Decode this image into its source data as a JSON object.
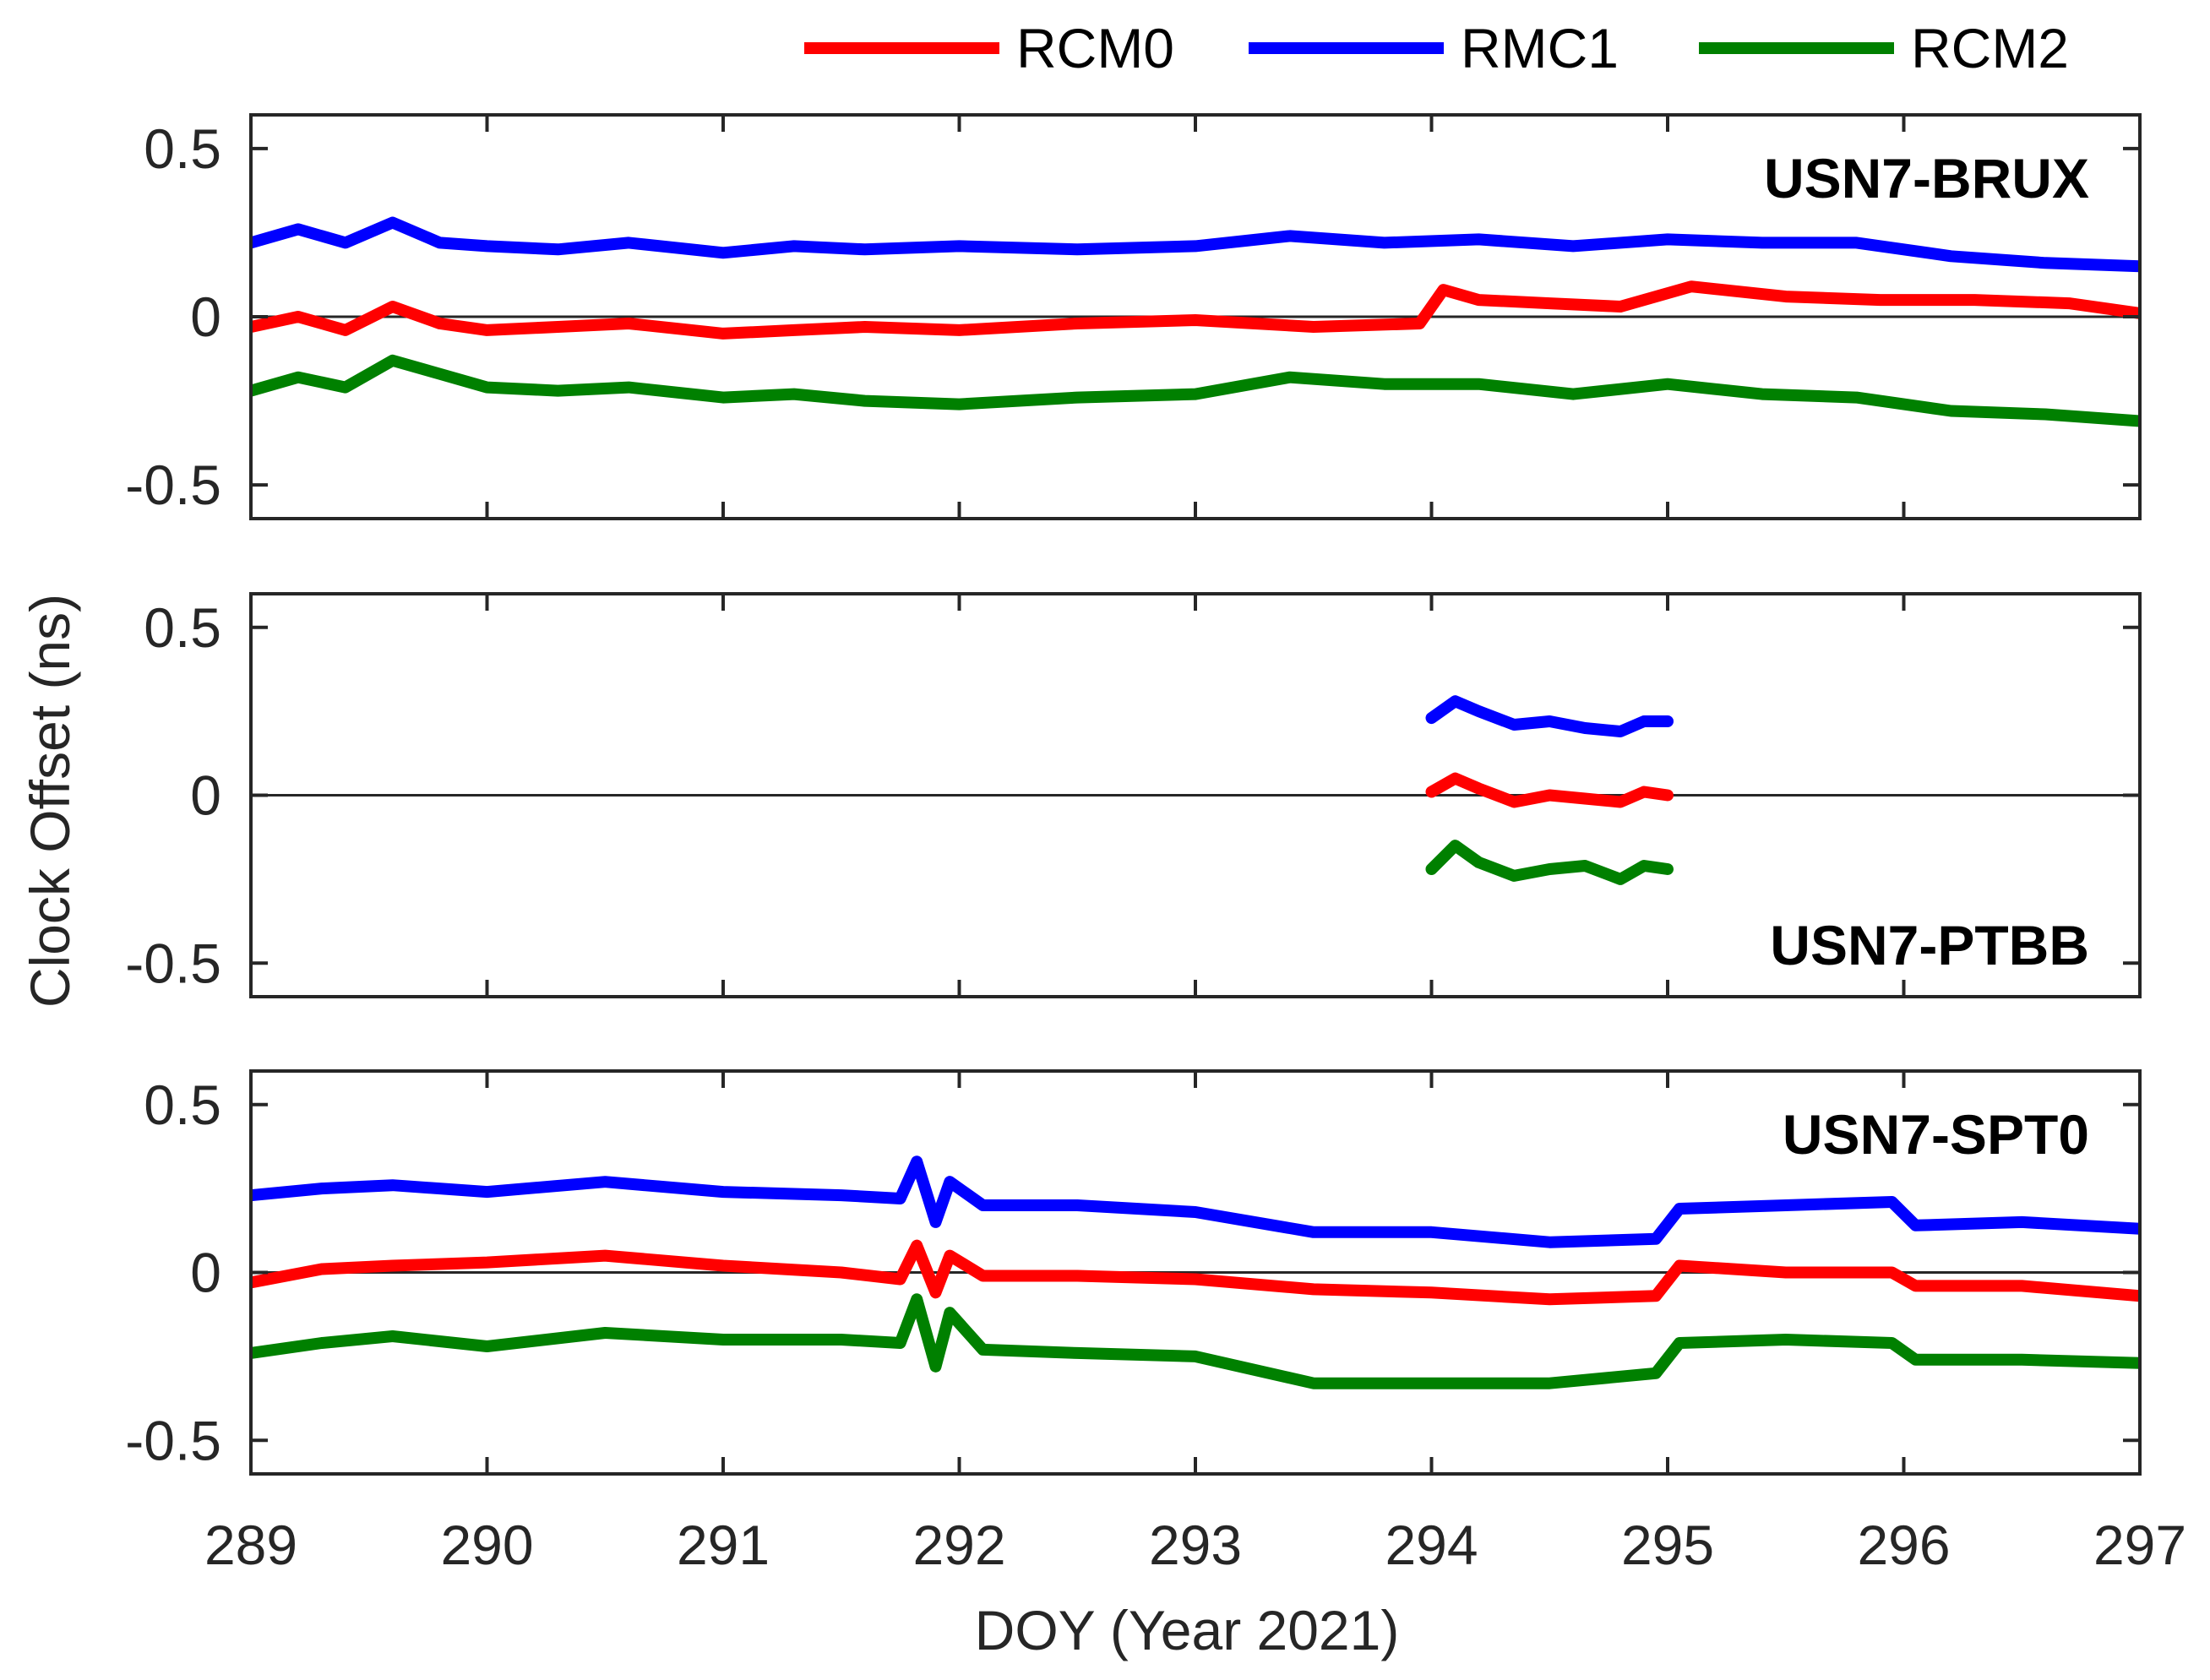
{
  "chart_data": {
    "type": "line",
    "xlabel": "DOY (Year 2021)",
    "ylabel": "Clock Offset (ns)",
    "xlim": [
      289,
      297
    ],
    "ylim": [
      -0.6,
      0.6
    ],
    "x_ticks": [
      289,
      290,
      291,
      292,
      293,
      294,
      295,
      296,
      297
    ],
    "x_tick_labels": [
      "289",
      "290",
      "291",
      "292",
      "293",
      "294",
      "295",
      "296",
      "297"
    ],
    "y_ticks": [
      0.5,
      0,
      -0.5
    ],
    "y_tick_labels": [
      "0.5",
      "0",
      "-0.5"
    ],
    "legend": [
      {
        "name": "RCM0",
        "color": "#ff0000"
      },
      {
        "name": "RMC1",
        "color": "#0000ff"
      },
      {
        "name": "RCM2",
        "color": "#008000"
      }
    ],
    "panels": [
      {
        "label": "USN7-BRUX",
        "label_position": "top-right",
        "series": [
          {
            "name": "RCM0",
            "color": "#ff0000",
            "x": [
              289,
              289.2,
              289.4,
              289.6,
              289.8,
              290,
              290.3,
              290.6,
              291,
              291.3,
              291.6,
              292,
              292.5,
              293,
              293.5,
              293.95,
              294.05,
              294.2,
              294.5,
              294.8,
              295.1,
              295.5,
              295.9,
              296.3,
              296.7,
              297
            ],
            "y": [
              -0.03,
              0.0,
              -0.04,
              0.03,
              -0.02,
              -0.04,
              -0.03,
              -0.02,
              -0.05,
              -0.04,
              -0.03,
              -0.04,
              -0.02,
              -0.01,
              -0.03,
              -0.02,
              0.08,
              0.05,
              0.04,
              0.03,
              0.09,
              0.06,
              0.05,
              0.05,
              0.04,
              0.01
            ]
          },
          {
            "name": "RMC1",
            "color": "#0000ff",
            "x": [
              289,
              289.2,
              289.4,
              289.6,
              289.8,
              290,
              290.3,
              290.6,
              291,
              291.3,
              291.6,
              292,
              292.5,
              293,
              293.4,
              293.8,
              294.2,
              294.6,
              295,
              295.4,
              295.8,
              296.2,
              296.6,
              297
            ],
            "y": [
              0.22,
              0.26,
              0.22,
              0.28,
              0.22,
              0.21,
              0.2,
              0.22,
              0.19,
              0.21,
              0.2,
              0.21,
              0.2,
              0.21,
              0.24,
              0.22,
              0.23,
              0.21,
              0.23,
              0.22,
              0.22,
              0.18,
              0.16,
              0.15
            ]
          },
          {
            "name": "RCM2",
            "color": "#008000",
            "x": [
              289,
              289.2,
              289.4,
              289.6,
              289.8,
              290,
              290.3,
              290.6,
              291,
              291.3,
              291.6,
              292,
              292.5,
              293,
              293.4,
              293.8,
              294.2,
              294.6,
              295,
              295.4,
              295.8,
              296.2,
              296.6,
              297
            ],
            "y": [
              -0.22,
              -0.18,
              -0.21,
              -0.13,
              -0.17,
              -0.21,
              -0.22,
              -0.21,
              -0.24,
              -0.23,
              -0.25,
              -0.26,
              -0.24,
              -0.23,
              -0.18,
              -0.2,
              -0.2,
              -0.23,
              -0.2,
              -0.23,
              -0.24,
              -0.28,
              -0.29,
              -0.31
            ]
          }
        ]
      },
      {
        "label": "USN7-PTBB",
        "label_position": "bottom-right",
        "series": [
          {
            "name": "RCM0",
            "color": "#ff0000",
            "x": [
              294,
              294.1,
              294.2,
              294.35,
              294.5,
              294.65,
              294.8,
              294.9,
              295
            ],
            "y": [
              0.01,
              0.05,
              0.02,
              -0.02,
              0.0,
              -0.01,
              -0.02,
              0.01,
              0.0
            ]
          },
          {
            "name": "RMC1",
            "color": "#0000ff",
            "x": [
              294,
              294.1,
              294.2,
              294.35,
              294.5,
              294.65,
              294.8,
              294.9,
              295
            ],
            "y": [
              0.23,
              0.28,
              0.25,
              0.21,
              0.22,
              0.2,
              0.19,
              0.22,
              0.22
            ]
          },
          {
            "name": "RCM2",
            "color": "#008000",
            "x": [
              294,
              294.1,
              294.2,
              294.35,
              294.5,
              294.65,
              294.8,
              294.9,
              295
            ],
            "y": [
              -0.22,
              -0.15,
              -0.2,
              -0.24,
              -0.22,
              -0.21,
              -0.25,
              -0.21,
              -0.22
            ]
          }
        ]
      },
      {
        "label": "USN7-SPT0",
        "label_position": "top-right",
        "series": [
          {
            "name": "RCM0",
            "color": "#ff0000",
            "x": [
              289,
              289.3,
              289.6,
              290,
              290.5,
              291,
              291.5,
              291.75,
              291.82,
              291.9,
              291.96,
              292.1,
              292.5,
              293,
              293.5,
              294,
              294.5,
              294.95,
              295.05,
              295.5,
              295.95,
              296.05,
              296.5,
              297
            ],
            "y": [
              -0.03,
              0.01,
              0.02,
              0.03,
              0.05,
              0.02,
              0.0,
              -0.02,
              0.08,
              -0.06,
              0.05,
              -0.01,
              -0.01,
              -0.02,
              -0.05,
              -0.06,
              -0.08,
              -0.07,
              0.02,
              0.0,
              0.0,
              -0.04,
              -0.04,
              -0.07
            ]
          },
          {
            "name": "RMC1",
            "color": "#0000ff",
            "x": [
              289,
              289.3,
              289.6,
              290,
              290.5,
              291,
              291.5,
              291.75,
              291.82,
              291.9,
              291.96,
              292.1,
              292.5,
              293,
              293.5,
              294,
              294.5,
              294.95,
              295.05,
              295.5,
              295.95,
              296.05,
              296.5,
              297
            ],
            "y": [
              0.23,
              0.25,
              0.26,
              0.24,
              0.27,
              0.24,
              0.23,
              0.22,
              0.33,
              0.15,
              0.27,
              0.2,
              0.2,
              0.18,
              0.12,
              0.12,
              0.09,
              0.1,
              0.19,
              0.2,
              0.21,
              0.14,
              0.15,
              0.13
            ]
          },
          {
            "name": "RCM2",
            "color": "#008000",
            "x": [
              289,
              289.3,
              289.6,
              290,
              290.5,
              291,
              291.5,
              291.75,
              291.82,
              291.9,
              291.96,
              292.1,
              292.5,
              293,
              293.5,
              294,
              294.5,
              294.95,
              295.05,
              295.5,
              295.95,
              296.05,
              296.5,
              297
            ],
            "y": [
              -0.24,
              -0.21,
              -0.19,
              -0.22,
              -0.18,
              -0.2,
              -0.2,
              -0.21,
              -0.08,
              -0.28,
              -0.12,
              -0.23,
              -0.24,
              -0.25,
              -0.33,
              -0.33,
              -0.33,
              -0.3,
              -0.21,
              -0.2,
              -0.21,
              -0.26,
              -0.26,
              -0.27
            ]
          }
        ]
      }
    ]
  }
}
